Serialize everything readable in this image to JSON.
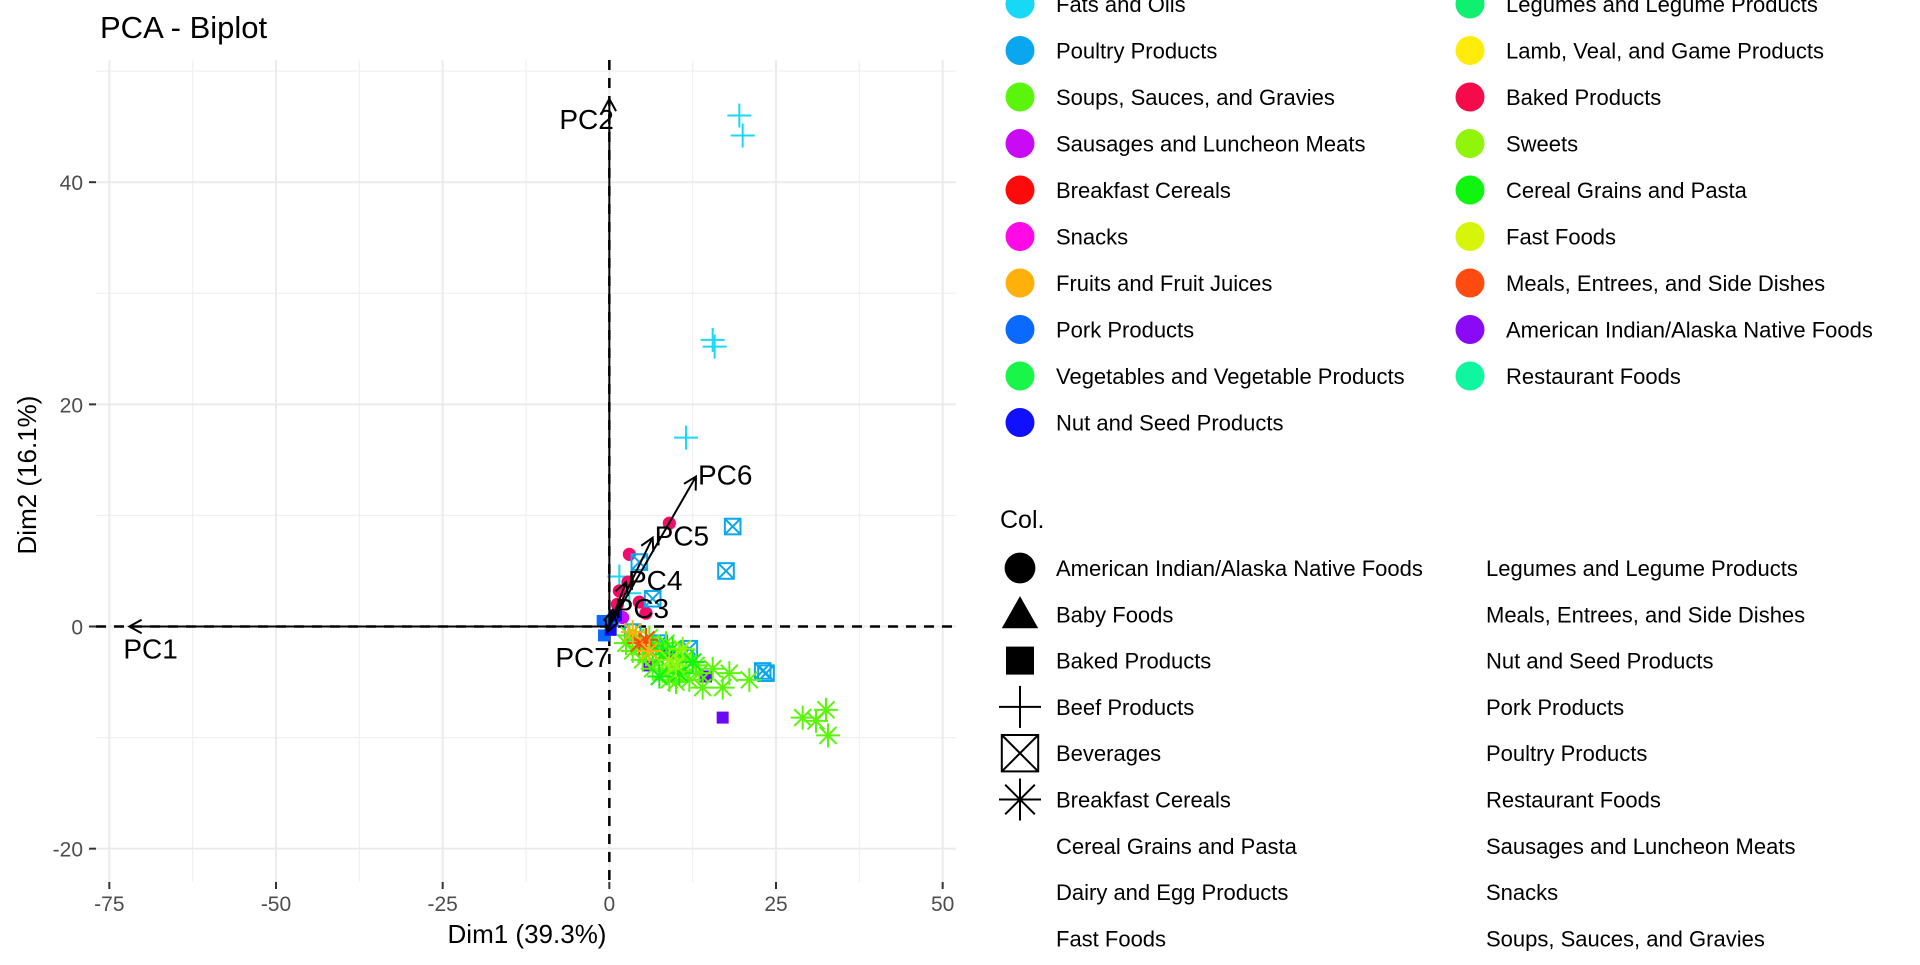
{
  "chart_data": {
    "type": "scatter",
    "title": "PCA - Biplot",
    "xlabel": "Dim1 (39.3%)",
    "ylabel": "Dim2 (16.1%)",
    "xlim": [
      -77,
      52
    ],
    "ylim": [
      -23,
      51
    ],
    "x_ticks": [
      -75,
      -50,
      -25,
      0,
      25,
      50
    ],
    "y_ticks": [
      -20,
      0,
      20,
      40
    ],
    "grid": true,
    "reference_lines": {
      "x": 0,
      "y": 0
    },
    "vectors": [
      {
        "label": "PC1",
        "x": -72,
        "y": 0
      },
      {
        "label": "PC2",
        "x": 0,
        "y": 47.5
      },
      {
        "label": "PC3",
        "x": 0.5,
        "y": 1.5
      },
      {
        "label": "PC4",
        "x": 2.5,
        "y": 4.0
      },
      {
        "label": "PC5",
        "x": 6.5,
        "y": 8.0
      },
      {
        "label": "PC6",
        "x": 13.0,
        "y": 13.5
      },
      {
        "label": "PC7",
        "x": -0.3,
        "y": -0.5
      }
    ],
    "legend_color": {
      "position": "top-right",
      "entries": [
        {
          "label": "Fats and Oils",
          "color": "#17d9f5"
        },
        {
          "label": "Poultry Products",
          "color": "#0aa6f0"
        },
        {
          "label": "Soups, Sauces, and Gravies",
          "color": "#5af50a"
        },
        {
          "label": "Sausages and Luncheon Meats",
          "color": "#c80af5"
        },
        {
          "label": "Breakfast Cereals",
          "color": "#ff0a0a"
        },
        {
          "label": "Snacks",
          "color": "#ff0ae6"
        },
        {
          "label": "Fruits and Fruit Juices",
          "color": "#ffb00a"
        },
        {
          "label": "Pork Products",
          "color": "#0a6aff"
        },
        {
          "label": "Vegetables and Vegetable Products",
          "color": "#1af54a"
        },
        {
          "label": "Nut and Seed Products",
          "color": "#1010ff"
        },
        {
          "label": "Legumes and Legume Products",
          "color": "#10f070"
        },
        {
          "label": "Lamb, Veal, and Game Products",
          "color": "#ffec0a"
        },
        {
          "label": "Baked Products",
          "color": "#f50a4a"
        },
        {
          "label": "Sweets",
          "color": "#90f50a"
        },
        {
          "label": "Cereal Grains and Pasta",
          "color": "#10f510"
        },
        {
          "label": "Fast Foods",
          "color": "#d6f50a"
        },
        {
          "label": "Meals, Entrees, and Side Dishes",
          "color": "#ff4a10"
        },
        {
          "label": "American Indian/Alaska Native Foods",
          "color": "#8a0af5"
        },
        {
          "label": "Restaurant Foods",
          "color": "#10f5a0"
        }
      ]
    },
    "legend_shape": {
      "title": "Col.",
      "entries": [
        {
          "label": "American Indian/Alaska Native Foods",
          "shape": "circle"
        },
        {
          "label": "Baby Foods",
          "shape": "triangle"
        },
        {
          "label": "Baked Products",
          "shape": "square"
        },
        {
          "label": "Beef Products",
          "shape": "plus"
        },
        {
          "label": "Beverages",
          "shape": "boxx"
        },
        {
          "label": "Breakfast Cereals",
          "shape": "asterisk"
        },
        {
          "label": "Cereal Grains and Pasta",
          "shape": "none"
        },
        {
          "label": "Dairy and Egg Products",
          "shape": "none"
        },
        {
          "label": "Fast Foods",
          "shape": "none"
        },
        {
          "label": "Legumes and Legume Products",
          "shape": "none"
        },
        {
          "label": "Meals, Entrees, and Side Dishes",
          "shape": "none"
        },
        {
          "label": "Nut and Seed Products",
          "shape": "none"
        },
        {
          "label": "Pork Products",
          "shape": "none"
        },
        {
          "label": "Poultry Products",
          "shape": "none"
        },
        {
          "label": "Restaurant Foods",
          "shape": "none"
        },
        {
          "label": "Sausages and Luncheon Meats",
          "shape": "none"
        },
        {
          "label": "Snacks",
          "shape": "none"
        },
        {
          "label": "Soups, Sauces, and Gravies",
          "shape": "none"
        }
      ]
    },
    "points": [
      {
        "x": 19.5,
        "y": 46.0,
        "shape": "plus",
        "color": "#17d9f5"
      },
      {
        "x": 20.0,
        "y": 44.2,
        "shape": "plus",
        "color": "#17d9f5"
      },
      {
        "x": 15.5,
        "y": 25.8,
        "shape": "plus",
        "color": "#17d9f5"
      },
      {
        "x": 15.8,
        "y": 25.2,
        "shape": "plus",
        "color": "#17d9f5"
      },
      {
        "x": 11.5,
        "y": 17.0,
        "shape": "plus",
        "color": "#17d9f5"
      },
      {
        "x": 1.5,
        "y": 4.5,
        "shape": "plus",
        "color": "#17d9f5"
      },
      {
        "x": 3.0,
        "y": 3.0,
        "shape": "plus",
        "color": "#17d9f5"
      },
      {
        "x": 9.0,
        "y": 9.3,
        "shape": "circle",
        "color": "#f50a6a"
      },
      {
        "x": 3.0,
        "y": 6.5,
        "shape": "circle",
        "color": "#f50a6a"
      },
      {
        "x": 2.8,
        "y": 4.0,
        "shape": "circle",
        "color": "#f50a6a"
      },
      {
        "x": 1.5,
        "y": 3.2,
        "shape": "circle",
        "color": "#f50a6a"
      },
      {
        "x": 4.5,
        "y": 2.2,
        "shape": "circle",
        "color": "#f50a6a"
      },
      {
        "x": 5.5,
        "y": 1.2,
        "shape": "circle",
        "color": "#f50a6a"
      },
      {
        "x": 1.2,
        "y": 2.0,
        "shape": "circle",
        "color": "#f50a6a"
      },
      {
        "x": 2.0,
        "y": 0.8,
        "shape": "circle",
        "color": "#c80af5"
      },
      {
        "x": 18.5,
        "y": 9.0,
        "shape": "boxx",
        "color": "#0aa6f0"
      },
      {
        "x": 17.5,
        "y": 5.0,
        "shape": "boxx",
        "color": "#0aa6f0"
      },
      {
        "x": 4.5,
        "y": 5.8,
        "shape": "boxx",
        "color": "#0aa6f0"
      },
      {
        "x": 6.5,
        "y": 2.5,
        "shape": "boxx",
        "color": "#0aa6f0"
      },
      {
        "x": 12.0,
        "y": -2.0,
        "shape": "boxx",
        "color": "#0aa6f0"
      },
      {
        "x": 23.5,
        "y": -4.2,
        "shape": "boxx",
        "color": "#0aa6f0"
      },
      {
        "x": 23.0,
        "y": -4.0,
        "shape": "boxx",
        "color": "#0aa6f0"
      },
      {
        "x": 3.5,
        "y": -0.5,
        "shape": "boxx",
        "color": "#0aa6f0"
      },
      {
        "x": 7.5,
        "y": -1.5,
        "shape": "boxx",
        "color": "#0aa6f0"
      },
      {
        "x": 0.5,
        "y": 0.5,
        "shape": "square",
        "color": "#0a6aff"
      },
      {
        "x": -1.0,
        "y": 0.5,
        "shape": "square",
        "color": "#0a6aff"
      },
      {
        "x": -0.8,
        "y": -0.8,
        "shape": "square",
        "color": "#0a6aff"
      },
      {
        "x": 17.0,
        "y": -8.2,
        "shape": "square",
        "color": "#6a0af5"
      },
      {
        "x": 14.5,
        "y": -4.5,
        "shape": "square",
        "color": "#6a0af5"
      },
      {
        "x": 9.0,
        "y": -2.5,
        "shape": "square",
        "color": "#6a0af5"
      },
      {
        "x": 6.0,
        "y": -3.5,
        "shape": "square",
        "color": "#6a0af5"
      },
      {
        "x": 29.0,
        "y": -8.2,
        "shape": "asterisk",
        "color": "#5af50a"
      },
      {
        "x": 32.5,
        "y": -7.5,
        "shape": "asterisk",
        "color": "#5af50a"
      },
      {
        "x": 32.8,
        "y": -9.8,
        "shape": "asterisk",
        "color": "#5af50a"
      },
      {
        "x": 31.0,
        "y": -8.5,
        "shape": "asterisk",
        "color": "#5af50a"
      },
      {
        "x": 21.0,
        "y": -4.8,
        "shape": "asterisk",
        "color": "#5af50a"
      },
      {
        "x": 18.0,
        "y": -4.2,
        "shape": "asterisk",
        "color": "#5af50a"
      },
      {
        "x": 17.0,
        "y": -5.5,
        "shape": "asterisk",
        "color": "#5af50a"
      },
      {
        "x": 14.0,
        "y": -5.5,
        "shape": "asterisk",
        "color": "#5af50a"
      },
      {
        "x": 13.0,
        "y": -3.5,
        "shape": "asterisk",
        "color": "#5af50a"
      },
      {
        "x": 12.0,
        "y": -4.8,
        "shape": "asterisk",
        "color": "#5af50a"
      },
      {
        "x": 11.0,
        "y": -4.0,
        "shape": "asterisk",
        "color": "#5af50a"
      },
      {
        "x": 10.5,
        "y": -2.5,
        "shape": "asterisk",
        "color": "#5af50a"
      },
      {
        "x": 10.0,
        "y": -5.0,
        "shape": "asterisk",
        "color": "#5af50a"
      },
      {
        "x": 9.5,
        "y": -3.5,
        "shape": "asterisk",
        "color": "#5af50a"
      },
      {
        "x": 9.0,
        "y": -4.8,
        "shape": "asterisk",
        "color": "#5af50a"
      },
      {
        "x": 8.5,
        "y": -1.5,
        "shape": "asterisk",
        "color": "#5af50a"
      },
      {
        "x": 8.0,
        "y": -4.0,
        "shape": "asterisk",
        "color": "#5af50a"
      },
      {
        "x": 7.5,
        "y": -3.0,
        "shape": "asterisk",
        "color": "#5af50a"
      },
      {
        "x": 7.0,
        "y": -2.0,
        "shape": "asterisk",
        "color": "#5af50a"
      },
      {
        "x": 6.5,
        "y": -3.8,
        "shape": "asterisk",
        "color": "#5af50a"
      },
      {
        "x": 6.0,
        "y": -1.0,
        "shape": "asterisk",
        "color": "#5af50a"
      },
      {
        "x": 5.5,
        "y": -2.5,
        "shape": "asterisk",
        "color": "#5af50a"
      },
      {
        "x": 5.0,
        "y": -3.0,
        "shape": "asterisk",
        "color": "#5af50a"
      },
      {
        "x": 4.5,
        "y": -1.8,
        "shape": "asterisk",
        "color": "#5af50a"
      },
      {
        "x": 4.0,
        "y": -1.0,
        "shape": "asterisk",
        "color": "#5af50a"
      },
      {
        "x": 3.5,
        "y": -2.2,
        "shape": "asterisk",
        "color": "#5af50a"
      },
      {
        "x": 3.0,
        "y": -0.8,
        "shape": "asterisk",
        "color": "#5af50a"
      },
      {
        "x": 2.5,
        "y": -1.5,
        "shape": "asterisk",
        "color": "#5af50a"
      },
      {
        "x": 11.5,
        "y": -2.8,
        "shape": "asterisk",
        "color": "#5af50a"
      },
      {
        "x": 13.5,
        "y": -4.2,
        "shape": "asterisk",
        "color": "#5af50a"
      },
      {
        "x": 15.5,
        "y": -3.8,
        "shape": "asterisk",
        "color": "#5af50a"
      },
      {
        "x": 8.0,
        "y": -2.5,
        "shape": "asterisk",
        "color": "#10f510"
      },
      {
        "x": 9.5,
        "y": -2.0,
        "shape": "asterisk",
        "color": "#10f510"
      },
      {
        "x": 10.5,
        "y": -4.2,
        "shape": "asterisk",
        "color": "#10f510"
      },
      {
        "x": 12.5,
        "y": -3.2,
        "shape": "asterisk",
        "color": "#10f510"
      },
      {
        "x": 6.5,
        "y": -1.8,
        "shape": "asterisk",
        "color": "#10f510"
      },
      {
        "x": 7.5,
        "y": -4.5,
        "shape": "asterisk",
        "color": "#10f510"
      },
      {
        "x": 9.0,
        "y": -3.0,
        "shape": "asterisk",
        "color": "#90f50a"
      },
      {
        "x": 10.0,
        "y": -3.5,
        "shape": "asterisk",
        "color": "#90f50a"
      },
      {
        "x": 11.0,
        "y": -2.0,
        "shape": "asterisk",
        "color": "#90f50a"
      },
      {
        "x": 4.5,
        "y": -1.5,
        "shape": "asterisk",
        "color": "#ff4a10"
      },
      {
        "x": 5.5,
        "y": -1.2,
        "shape": "asterisk",
        "color": "#ff4a10"
      },
      {
        "x": 6.0,
        "y": -2.2,
        "shape": "asterisk",
        "color": "#ffb00a"
      },
      {
        "x": 3.5,
        "y": -0.5,
        "shape": "asterisk",
        "color": "#ffb00a"
      },
      {
        "x": 1.0,
        "y": 1.0,
        "shape": "square",
        "color": "#1010ff"
      },
      {
        "x": 0.2,
        "y": -0.3,
        "shape": "square",
        "color": "#1010ff"
      }
    ]
  }
}
